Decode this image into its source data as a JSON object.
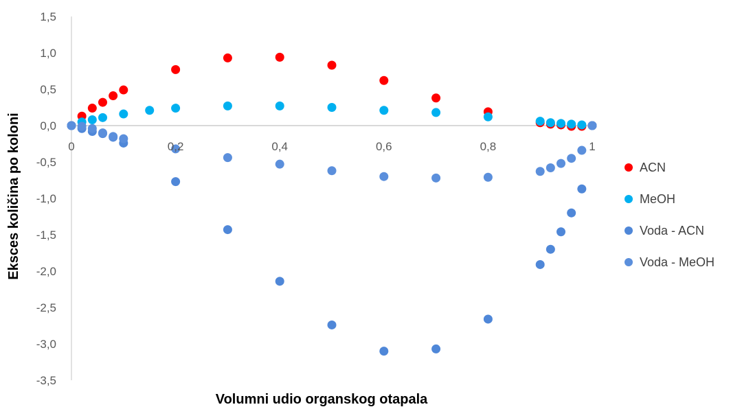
{
  "chart_data": {
    "type": "scatter",
    "xlabel": "Volumni udio organskog otapala",
    "ylabel": "Eksces količina po koloni",
    "xlim": [
      0,
      1
    ],
    "ylim": [
      -3.5,
      1.5
    ],
    "x_ticks": [
      "0",
      "0,2",
      "0,4",
      "0,6",
      "0,8",
      "1"
    ],
    "x_tick_values": [
      0,
      0.2,
      0.4,
      0.6,
      0.8,
      1
    ],
    "y_ticks": [
      "1,5",
      "1,0",
      "0,5",
      "0,0",
      "-0,5",
      "-1,0",
      "-1,5",
      "-2,0",
      "-2,5",
      "-3,0",
      "-3,5"
    ],
    "y_tick_values": [
      1.5,
      1.0,
      0.5,
      0.0,
      -0.5,
      -1.0,
      -1.5,
      -2.0,
      -2.5,
      -3.0,
      -3.5
    ],
    "grid": false,
    "legend_position": "right",
    "series": [
      {
        "name": "ACN",
        "color": "#ff0000",
        "points": [
          [
            0,
            0
          ],
          [
            0.02,
            0.13
          ],
          [
            0.04,
            0.24
          ],
          [
            0.06,
            0.32
          ],
          [
            0.08,
            0.41
          ],
          [
            0.1,
            0.49
          ],
          [
            0.2,
            0.77
          ],
          [
            0.3,
            0.93
          ],
          [
            0.4,
            0.94
          ],
          [
            0.5,
            0.83
          ],
          [
            0.6,
            0.62
          ],
          [
            0.7,
            0.38
          ],
          [
            0.8,
            0.19
          ],
          [
            0.9,
            0.04
          ],
          [
            0.92,
            0.02
          ],
          [
            0.94,
            0.01
          ],
          [
            0.96,
            -0.01
          ],
          [
            0.98,
            -0.01
          ],
          [
            1.0,
            0.0
          ]
        ]
      },
      {
        "name": "MeOH",
        "color": "#00b0f0",
        "points": [
          [
            0,
            0
          ],
          [
            0.02,
            0.05
          ],
          [
            0.04,
            0.08
          ],
          [
            0.06,
            0.11
          ],
          [
            0.1,
            0.16
          ],
          [
            0.15,
            0.21
          ],
          [
            0.2,
            0.24
          ],
          [
            0.3,
            0.27
          ],
          [
            0.4,
            0.27
          ],
          [
            0.5,
            0.25
          ],
          [
            0.6,
            0.21
          ],
          [
            0.7,
            0.18
          ],
          [
            0.8,
            0.12
          ],
          [
            0.9,
            0.06
          ],
          [
            0.92,
            0.04
          ],
          [
            0.94,
            0.03
          ],
          [
            0.96,
            0.02
          ],
          [
            0.98,
            0.01
          ],
          [
            1.0,
            0.0
          ]
        ]
      },
      {
        "name": "Voda - ACN",
        "color": "#4f87d8",
        "points": [
          [
            0,
            0
          ],
          [
            0.02,
            -0.04
          ],
          [
            0.04,
            -0.08
          ],
          [
            0.06,
            -0.11
          ],
          [
            0.08,
            -0.16
          ],
          [
            0.1,
            -0.24
          ],
          [
            0.2,
            -0.77
          ],
          [
            0.3,
            -1.43
          ],
          [
            0.4,
            -2.14
          ],
          [
            0.5,
            -2.74
          ],
          [
            0.6,
            -3.1
          ],
          [
            0.7,
            -3.07
          ],
          [
            0.8,
            -2.66
          ],
          [
            0.9,
            -1.91
          ],
          [
            0.92,
            -1.7
          ],
          [
            0.94,
            -1.46
          ],
          [
            0.96,
            -1.2
          ],
          [
            0.98,
            -0.87
          ],
          [
            1.0,
            0.0
          ]
        ]
      },
      {
        "name": "Voda - MeOH",
        "color": "#5b8fdc",
        "points": [
          [
            0,
            0
          ],
          [
            0.02,
            -0.01
          ],
          [
            0.04,
            -0.04
          ],
          [
            0.06,
            -0.1
          ],
          [
            0.08,
            -0.15
          ],
          [
            0.1,
            -0.18
          ],
          [
            0.2,
            -0.32
          ],
          [
            0.3,
            -0.44
          ],
          [
            0.4,
            -0.53
          ],
          [
            0.5,
            -0.62
          ],
          [
            0.6,
            -0.7
          ],
          [
            0.7,
            -0.72
          ],
          [
            0.8,
            -0.71
          ],
          [
            0.9,
            -0.63
          ],
          [
            0.92,
            -0.58
          ],
          [
            0.94,
            -0.52
          ],
          [
            0.96,
            -0.45
          ],
          [
            0.98,
            -0.34
          ],
          [
            1.0,
            0.0
          ]
        ]
      }
    ]
  }
}
